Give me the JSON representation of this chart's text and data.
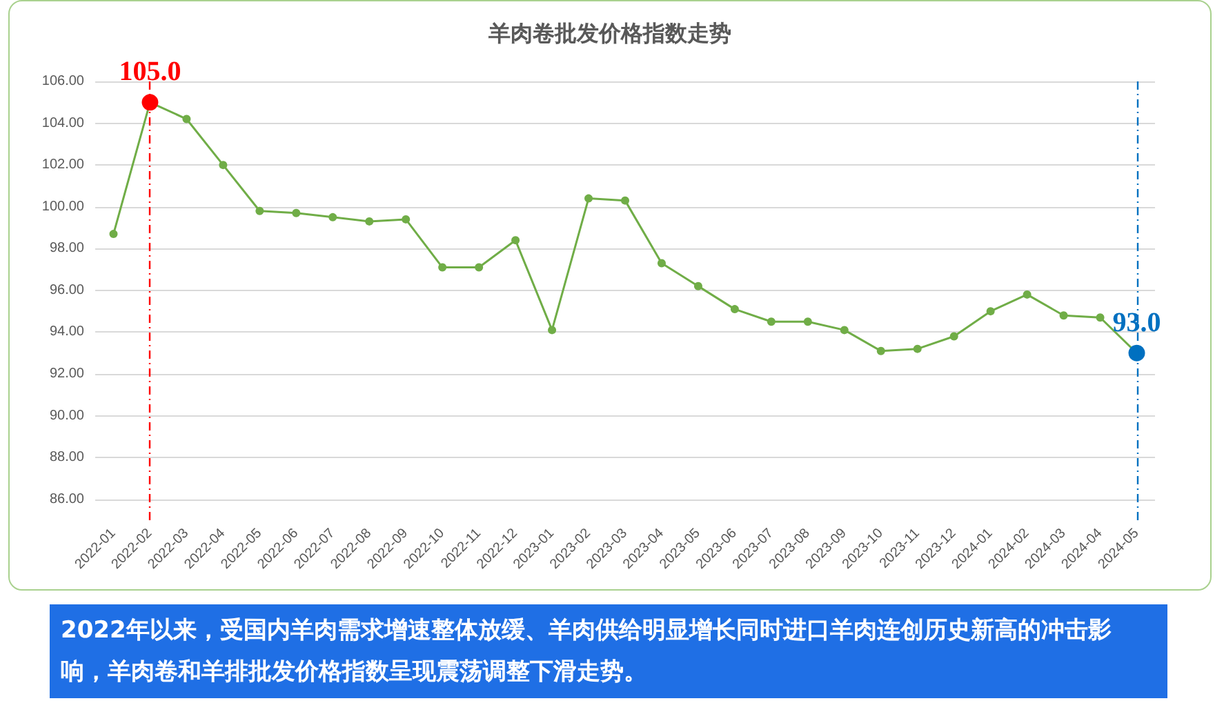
{
  "chart_data": {
    "type": "line",
    "title": "羊肉卷批发价格指数走势",
    "categories": [
      "2022-01",
      "2022-02",
      "2022-03",
      "2022-04",
      "2022-05",
      "2022-06",
      "2022-07",
      "2022-08",
      "2022-09",
      "2022-10",
      "2022-11",
      "2022-12",
      "2023-01",
      "2023-02",
      "2023-03",
      "2023-04",
      "2023-05",
      "2023-06",
      "2023-07",
      "2023-08",
      "2023-09",
      "2023-10",
      "2023-11",
      "2023-12",
      "2024-01",
      "2024-02",
      "2024-03",
      "2024-04",
      "2024-05"
    ],
    "series": [
      {
        "color": "#70ad47",
        "values": [
          98.7,
          105.0,
          104.2,
          102.0,
          99.8,
          99.7,
          99.5,
          99.3,
          99.4,
          97.1,
          97.1,
          98.4,
          94.1,
          100.4,
          100.3,
          97.3,
          96.2,
          95.1,
          94.5,
          94.5,
          94.1,
          93.1,
          93.2,
          93.8,
          95.0,
          95.8,
          94.8,
          94.7,
          93.0
        ]
      }
    ],
    "ylim": [
      85,
      106
    ],
    "yticks": [
      {
        "value": 86,
        "label": "86.00"
      },
      {
        "value": 88,
        "label": "88.00"
      },
      {
        "value": 90,
        "label": "90.00"
      },
      {
        "value": 92,
        "label": "92.00"
      },
      {
        "value": 94,
        "label": "94.00"
      },
      {
        "value": 96,
        "label": "96.00"
      },
      {
        "value": 98,
        "label": "98.00"
      },
      {
        "value": 100,
        "label": "100.00"
      },
      {
        "value": 102,
        "label": "102.00"
      },
      {
        "value": 104,
        "label": "104.00"
      },
      {
        "value": 106,
        "label": "106.00"
      }
    ],
    "grid": "y",
    "marker": "circle",
    "line_style": "solid",
    "ref_lines": [
      {
        "axis": "x",
        "value": "2022-02",
        "color": "#ff0000",
        "line_style": "dashed"
      },
      {
        "axis": "x",
        "value": "2024-05",
        "color": "#0070c0",
        "line_style": "dashed"
      }
    ],
    "annotations": [
      {
        "text": "105.0",
        "x": "2022-02",
        "y": 105.0
      },
      {
        "text": "93.0",
        "x": "2024-05",
        "y": 93.0
      },
      "2022年以来，受国内羊肉需求增速整体放缓、羊肉供给明显增长同时进口羊肉连创历史新高的冲击影响，羊肉卷和羊排批发价格指数呈现震荡调整下滑走势。"
    ]
  }
}
